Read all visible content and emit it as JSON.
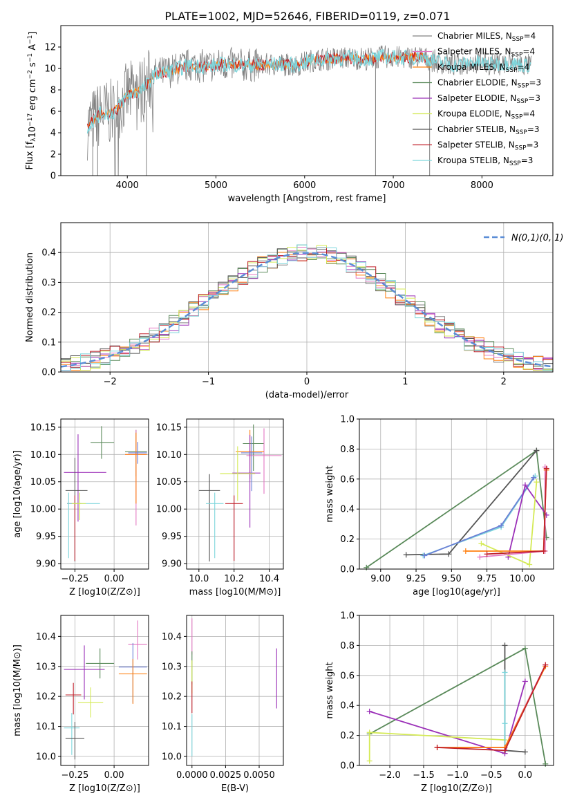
{
  "figure": {
    "title": "PLATE=1002, MJD=52646, FIBERID=0119, z=0.071"
  },
  "model_legend": {
    "entries": [
      {
        "label": "Chabrier MILES, N",
        "sub": "SSP",
        "value": "=4",
        "color": "#808080"
      },
      {
        "label": "Salpeter MILES, N",
        "sub": "SSP",
        "value": "=4",
        "color": "#e377c2"
      },
      {
        "label": "Kroupa MILES, N",
        "sub": "SSP",
        "value": "=4",
        "color": "#ff7f0e"
      },
      {
        "label": "Chabrier ELODIE, N",
        "sub": "SSP",
        "value": "=3",
        "color": "#5a8a5a"
      },
      {
        "label": "Salpeter ELODIE, N",
        "sub": "SSP",
        "value": "=3",
        "color": "#9b30b8"
      },
      {
        "label": "Kroupa ELODIE, N",
        "sub": "SSP",
        "value": "=4",
        "color": "#d4ea55"
      },
      {
        "label": "Chabrier STELIB, N",
        "sub": "SSP",
        "value": "=3",
        "color": "#555555"
      },
      {
        "label": "Salpeter STELIB, N",
        "sub": "SSP",
        "value": "=3",
        "color": "#c0202a"
      },
      {
        "label": "Kroupa STELIB, N",
        "sub": "SSP",
        "value": "=3",
        "color": "#7dd6dc"
      }
    ]
  },
  "chart_data": [
    {
      "id": "spectrum",
      "type": "line",
      "title": "PLATE=1002, MJD=52646, FIBERID=0119, z=0.071",
      "xlabel": "wavelength [Angstrom, rest frame]",
      "ylabel": "Flux [f_λ 10^-17 erg cm^-2 s^-1 A^-1]",
      "xlim": [
        3250,
        8800
      ],
      "ylim": [
        0,
        14
      ],
      "xticks": [
        4000,
        5000,
        6000,
        7000,
        8000
      ],
      "yticks": [
        0,
        2,
        4,
        6,
        8,
        10,
        12
      ],
      "legend": "right",
      "grid": false,
      "continuum": {
        "x": [
          3550,
          3700,
          3850,
          4000,
          4100,
          4200,
          4300,
          4500,
          4700,
          4900,
          5100,
          5300,
          5500,
          5700,
          5900,
          6100,
          6300,
          6500,
          6700,
          6900,
          7100,
          7300,
          7500,
          7700,
          7900,
          8100,
          8300,
          8500
        ],
        "y": [
          4.6,
          5.8,
          5.9,
          7.5,
          7.8,
          8.2,
          9.4,
          9.8,
          10.3,
          10.2,
          10.4,
          10.3,
          10.3,
          10.4,
          10.3,
          10.8,
          10.9,
          11.0,
          10.9,
          11.1,
          11.0,
          11.1,
          10.6,
          10.3,
          10.6,
          10.4,
          10.5,
          10.3
        ]
      }
    },
    {
      "id": "residuals",
      "type": "bar",
      "xlabel": "(data-model)/error",
      "ylabel": "Normed distribution",
      "xlim": [
        -2.5,
        2.5
      ],
      "ylim": [
        0,
        0.5
      ],
      "xticks": [
        -2,
        -1,
        0,
        1,
        2
      ],
      "yticks": [
        0.0,
        0.1,
        0.2,
        0.3,
        0.4
      ],
      "grid": true,
      "legend": "top-right",
      "reference": {
        "name": "N(0,1)",
        "mean": 0,
        "sigma": 1
      }
    },
    {
      "id": "age-vs-Z",
      "type": "scatter",
      "xlabel": "Z [log10(Z/Z⊙)]",
      "ylabel": "age  [log10(age/yr)]",
      "xlim": [
        -0.34,
        0.22
      ],
      "ylim": [
        9.89,
        10.165
      ],
      "xticks": [
        -0.25,
        0.0
      ],
      "yticks": [
        9.9,
        9.95,
        10.0,
        10.05,
        10.1,
        10.15
      ],
      "grid": true,
      "points": [
        {
          "x": 0.14,
          "y": 10.105,
          "xerr": [
            0.07,
            0.07
          ],
          "yerr": [
            0.045,
            0.04
          ],
          "color": "#5a8a5a"
        },
        {
          "x": 0.14,
          "y": 10.1,
          "xerr": [
            0.07,
            0.06
          ],
          "yerr": [
            0.13,
            0.045
          ],
          "color": "#e377c2"
        },
        {
          "x": 0.14,
          "y": 10.1,
          "xerr": [
            0.07,
            0.07
          ],
          "yerr": [
            0.09,
            0.04
          ],
          "color": "#ff7f0e"
        },
        {
          "x": -0.08,
          "y": 10.122,
          "xerr": [
            0.07,
            0.08
          ],
          "yerr": [
            0.03,
            0.03
          ],
          "color": "#5a8a5a"
        },
        {
          "x": -0.23,
          "y": 10.067,
          "xerr": [
            0.09,
            0.18
          ],
          "yerr": [
            0.09,
            0.07
          ],
          "color": "#9b30b8"
        },
        {
          "x": 0.15,
          "y": 10.103,
          "xerr": [
            0.06,
            0.06
          ],
          "yerr": [
            0.02,
            0.02
          ],
          "color": "#6b7fd6"
        },
        {
          "x": -0.25,
          "y": 10.034,
          "xerr": [
            0.06,
            0.08
          ],
          "yerr": [
            0.13,
            0.06
          ],
          "color": "#555555"
        },
        {
          "x": -0.25,
          "y": 10.01,
          "xerr": [
            0.05,
            0.04
          ],
          "yerr": [
            0.105,
            0.015
          ],
          "color": "#c0202a"
        },
        {
          "x": -0.29,
          "y": 10.01,
          "xerr": [
            0.01,
            0.2
          ],
          "yerr": [
            0.1,
            0.02
          ],
          "color": "#7dd6dc"
        },
        {
          "x": -0.22,
          "y": 10.01,
          "xerr": [
            0.05,
            0.04
          ],
          "yerr": [
            0.03,
            0.02
          ],
          "color": "#d4ea55"
        }
      ]
    },
    {
      "id": "age-vs-mass",
      "type": "scatter",
      "xlabel": "mass [log10(M/M⊙)]",
      "ylabel": "",
      "xlim": [
        9.93,
        10.48
      ],
      "ylim": [
        9.89,
        10.165
      ],
      "xticks": [
        10.0,
        10.2,
        10.4
      ],
      "yticks": [
        9.9,
        9.95,
        10.0,
        10.05,
        10.1,
        10.15
      ],
      "grid": true,
      "points": [
        {
          "x": 10.31,
          "y": 10.12,
          "xerr": [
            0.06,
            0.06
          ],
          "yerr": [
            0.05,
            0.035
          ],
          "color": "#5a8a5a"
        },
        {
          "x": 10.37,
          "y": 10.098,
          "xerr": [
            0.1,
            0.1
          ],
          "yerr": [
            0.07,
            0.05
          ],
          "color": "#e377c2"
        },
        {
          "x": 10.29,
          "y": 10.105,
          "xerr": [
            0.08,
            0.08
          ],
          "yerr": [
            0.05,
            0.04
          ],
          "color": "#ff7f0e"
        },
        {
          "x": 10.29,
          "y": 10.066,
          "xerr": [
            0.1,
            0.06
          ],
          "yerr": [
            0.1,
            0.07
          ],
          "color": "#9b30b8"
        },
        {
          "x": 10.3,
          "y": 10.103,
          "xerr": [
            0.06,
            0.06
          ],
          "yerr": [
            0.07,
            0.03
          ],
          "color": "#6b7fd6"
        },
        {
          "x": 10.22,
          "y": 10.065,
          "xerr": [
            0.1,
            0.1
          ],
          "yerr": [
            0.05,
            0.05
          ],
          "color": "#d4ea55"
        },
        {
          "x": 10.06,
          "y": 10.034,
          "xerr": [
            0.06,
            0.06
          ],
          "yerr": [
            0.13,
            0.03
          ],
          "color": "#555555"
        },
        {
          "x": 10.2,
          "y": 10.01,
          "xerr": [
            0.05,
            0.05
          ],
          "yerr": [
            0.105,
            0.015
          ],
          "color": "#c0202a"
        },
        {
          "x": 10.09,
          "y": 10.01,
          "xerr": [
            0.05,
            0.05
          ],
          "yerr": [
            0.1,
            0.02
          ],
          "color": "#7dd6dc"
        }
      ]
    },
    {
      "id": "mass-weight-vs-age",
      "type": "line",
      "xlabel": "age  [log10(age/yr)]",
      "ylabel": "mass weight",
      "xlim": [
        8.85,
        10.22
      ],
      "ylim": [
        0.0,
        1.0
      ],
      "xticks": [
        9.0,
        9.25,
        9.5,
        9.75,
        10.0
      ],
      "yticks": [
        0.0,
        0.2,
        0.4,
        0.6,
        0.8,
        1.0
      ],
      "grid": true,
      "series": [
        {
          "color": "#5a8a5a",
          "x": [
            8.9,
            10.1,
            10.17
          ],
          "y": [
            0.01,
            0.79,
            0.21
          ]
        },
        {
          "color": "#555555",
          "x": [
            9.18,
            9.48,
            10.1
          ],
          "y": [
            0.095,
            0.1,
            0.79
          ]
        },
        {
          "color": "#7dd6dc",
          "x": [
            9.3,
            9.85,
            10.09
          ],
          "y": [
            0.09,
            0.28,
            0.62
          ]
        },
        {
          "color": "#6b7fd6",
          "x": [
            9.31,
            9.85,
            10.08
          ],
          "y": [
            0.09,
            0.29,
            0.61
          ]
        },
        {
          "color": "#9b30b8",
          "x": [
            9.9,
            10.02,
            10.17
          ],
          "y": [
            0.08,
            0.56,
            0.36
          ]
        },
        {
          "color": "#d4ea55",
          "x": [
            9.71,
            10.05,
            10.1
          ],
          "y": [
            0.17,
            0.03,
            0.58
          ]
        },
        {
          "color": "#e377c2",
          "x": [
            9.7,
            10.16,
            10.16
          ],
          "y": [
            0.08,
            0.12,
            0.68
          ]
        },
        {
          "color": "#ff7f0e",
          "x": [
            9.6,
            10.15,
            10.17
          ],
          "y": [
            0.12,
            0.12,
            0.66
          ]
        },
        {
          "color": "#c0202a",
          "x": [
            9.75,
            10.15,
            10.17
          ],
          "y": [
            0.1,
            0.12,
            0.67
          ]
        }
      ]
    },
    {
      "id": "mass-vs-Z",
      "type": "scatter",
      "xlabel": "Z [log10(Z/Z⊙)]",
      "ylabel": "mass [log10(M/M⊙)]",
      "xlim": [
        -0.34,
        0.22
      ],
      "ylim": [
        9.97,
        10.47
      ],
      "xticks": [
        -0.25,
        0.0
      ],
      "yticks": [
        10.0,
        10.1,
        10.2,
        10.3,
        10.4
      ],
      "grid": true,
      "points": [
        {
          "x": 0.15,
          "y": 10.373,
          "xerr": [
            0.06,
            0.06
          ],
          "yerr": [
            0.05,
            0.08
          ],
          "color": "#e377c2"
        },
        {
          "x": -0.09,
          "y": 10.31,
          "xerr": [
            0.09,
            0.09
          ],
          "yerr": [
            0.05,
            0.05
          ],
          "color": "#5a8a5a"
        },
        {
          "x": -0.19,
          "y": 10.29,
          "xerr": [
            0.13,
            0.13
          ],
          "yerr": [
            0.1,
            0.08
          ],
          "color": "#9b30b8"
        },
        {
          "x": 0.12,
          "y": 10.298,
          "xerr": [
            0.09,
            0.09
          ],
          "yerr": [
            0.12,
            0.08
          ],
          "color": "#6b7fd6"
        },
        {
          "x": 0.12,
          "y": 10.275,
          "xerr": [
            0.09,
            0.09
          ],
          "yerr": [
            0.1,
            0.05
          ],
          "color": "#ff7f0e"
        },
        {
          "x": -0.26,
          "y": 10.205,
          "xerr": [
            0.05,
            0.05
          ],
          "yerr": [
            0.065,
            0.04
          ],
          "color": "#c0202a"
        },
        {
          "x": -0.15,
          "y": 10.18,
          "xerr": [
            0.08,
            0.08
          ],
          "yerr": [
            0.05,
            0.05
          ],
          "color": "#d4ea55"
        },
        {
          "x": -0.27,
          "y": 10.095,
          "xerr": [
            0.05,
            0.05
          ],
          "yerr": [
            0.09,
            0.05
          ],
          "color": "#7dd6dc"
        },
        {
          "x": -0.25,
          "y": 10.06,
          "xerr": [
            0.06,
            0.06
          ],
          "yerr": [
            0.07,
            0.055
          ],
          "color": "#555555"
        }
      ]
    },
    {
      "id": "mass-vs-EBV",
      "type": "scatter",
      "xlabel": "E(B-V)",
      "ylabel": "",
      "xlim": [
        -0.0004,
        0.0068
      ],
      "ylim": [
        9.97,
        10.47
      ],
      "xticks": [
        0.0,
        0.0025,
        0.005
      ],
      "xticklabels": [
        "0.0000",
        "0.0025",
        "0.0050"
      ],
      "yticks": [
        10.0,
        10.1,
        10.2,
        10.3,
        10.4
      ],
      "grid": true,
      "points": [
        {
          "x": 0.0,
          "y": 10.4,
          "xerr": [
            0,
            0
          ],
          "yerr": [
            0.06,
            0.06
          ],
          "color": "#e377c2"
        },
        {
          "x": 0.0,
          "y": 10.3,
          "xerr": [
            0,
            0
          ],
          "yerr": [
            0.06,
            0.05
          ],
          "color": "#5a8a5a"
        },
        {
          "x": 0.0,
          "y": 10.27,
          "xerr": [
            0,
            0
          ],
          "yerr": [
            0.06,
            0.05
          ],
          "color": "#d4ea55"
        },
        {
          "x": 0.0,
          "y": 10.2,
          "xerr": [
            0,
            0
          ],
          "yerr": [
            0.055,
            0.05
          ],
          "color": "#c0202a"
        },
        {
          "x": 0.0,
          "y": 10.1,
          "xerr": [
            0,
            0
          ],
          "yerr": [
            0.1,
            0.04
          ],
          "color": "#7dd6dc"
        },
        {
          "x": 0.0063,
          "y": 10.26,
          "xerr": [
            0,
            0
          ],
          "yerr": [
            0.1,
            0.1
          ],
          "color": "#9b30b8"
        }
      ]
    },
    {
      "id": "mass-weight-vs-Z",
      "type": "line",
      "xlabel": "Z [log10(Z/Z⊙)]",
      "ylabel": "mass weight",
      "xlim": [
        -2.45,
        0.42
      ],
      "ylim": [
        0.0,
        1.0
      ],
      "xticks": [
        -2.0,
        -1.5,
        -1.0,
        -0.5,
        0.0
      ],
      "yticks": [
        0.0,
        0.2,
        0.4,
        0.6,
        0.8,
        1.0
      ],
      "grid": true,
      "series": [
        {
          "color": "#5a8a5a",
          "x": [
            -2.3,
            0.0,
            0.3
          ],
          "y": [
            0.21,
            0.78,
            0.01
          ]
        },
        {
          "color": "#9b30b8",
          "x": [
            -2.3,
            -0.3,
            0.0
          ],
          "y": [
            0.36,
            0.08,
            0.56
          ]
        },
        {
          "color": "#d4ea55",
          "x": [
            -2.3,
            -2.3,
            -0.3
          ],
          "y": [
            0.03,
            0.22,
            0.17
          ]
        },
        {
          "color": "#555555",
          "x": [
            -0.3,
            -0.3,
            0.0
          ],
          "y": [
            0.8,
            0.1,
            0.09
          ]
        },
        {
          "color": "#7dd6dc",
          "x": [
            -0.3,
            -0.3,
            -0.3
          ],
          "y": [
            0.62,
            0.28,
            0.1
          ]
        },
        {
          "color": "#e377c2",
          "x": [
            -1.3,
            -0.3,
            0.3
          ],
          "y": [
            0.12,
            0.12,
            0.67
          ]
        },
        {
          "color": "#ff7f0e",
          "x": [
            -1.3,
            -0.3,
            0.3
          ],
          "y": [
            0.12,
            0.12,
            0.66
          ]
        },
        {
          "color": "#c0202a",
          "x": [
            -1.3,
            -0.3,
            0.3
          ],
          "y": [
            0.12,
            0.1,
            0.67
          ]
        }
      ]
    }
  ]
}
